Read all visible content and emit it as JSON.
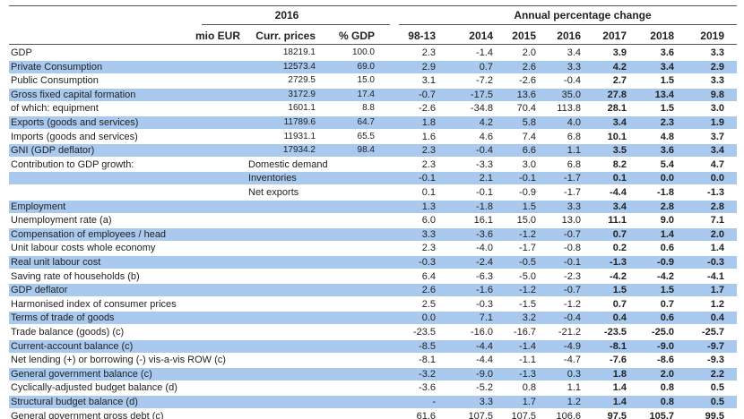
{
  "header": {
    "year": "2016",
    "change": "Annual percentage change",
    "columns": [
      "mio EUR",
      "Curr. prices",
      "% GDP",
      "98-13",
      "2014",
      "2015",
      "2016",
      "2017",
      "2018",
      "2019"
    ]
  },
  "rows": [
    {
      "label": "GDP",
      "shaded": false,
      "cells": [
        "18219.1",
        "100.0",
        "2.3",
        "-1.4",
        "2.0",
        "3.4",
        "3.9",
        "3.6",
        "3.3"
      ]
    },
    {
      "label": "Private Consumption",
      "shaded": true,
      "cells": [
        "12573.4",
        "69.0",
        "2.9",
        "0.7",
        "2.6",
        "3.3",
        "4.2",
        "3.4",
        "2.9"
      ]
    },
    {
      "label": "Public Consumption",
      "shaded": false,
      "cells": [
        "2729.5",
        "15.0",
        "3.1",
        "-7.2",
        "-2.6",
        "-0.4",
        "2.7",
        "1.5",
        "3.3"
      ]
    },
    {
      "label": "Gross fixed capital formation",
      "shaded": true,
      "cells": [
        "3172.9",
        "17.4",
        "-0.7",
        "-17.5",
        "13.6",
        "35.0",
        "27.8",
        "13.4",
        "9.8"
      ]
    },
    {
      "label": "of which: equipment",
      "shaded": false,
      "cells": [
        "1601.1",
        "8.8",
        "-2.6",
        "-34.8",
        "70.4",
        "113.8",
        "28.1",
        "1.5",
        "3.0"
      ]
    },
    {
      "label": "Exports (goods and services)",
      "shaded": true,
      "cells": [
        "11789.6",
        "64.7",
        "1.8",
        "4.2",
        "5.8",
        "4.0",
        "3.4",
        "2.3",
        "1.9"
      ]
    },
    {
      "label": "Imports (goods and services)",
      "shaded": false,
      "cells": [
        "11931.1",
        "65.5",
        "1.6",
        "4.6",
        "7.4",
        "6.8",
        "10.1",
        "4.8",
        "3.7"
      ]
    },
    {
      "label": "GNI (GDP deflator)",
      "shaded": true,
      "cells": [
        "17934.2",
        "98.4",
        "2.3",
        "-0.4",
        "6.6",
        "1.1",
        "3.5",
        "3.6",
        "3.4"
      ]
    },
    {
      "label": "Contribution to GDP growth:",
      "sublabel": "Domestic demand",
      "shaded": false,
      "cells": [
        null,
        null,
        "2.3",
        "-3.3",
        "3.0",
        "6.8",
        "8.2",
        "5.4",
        "4.7"
      ]
    },
    {
      "sublabel": "Inventories",
      "shaded": true,
      "cells": [
        null,
        null,
        "-0.1",
        "2.1",
        "-0.1",
        "-1.7",
        "0.1",
        "0.0",
        "0.0"
      ]
    },
    {
      "sublabel": "Net exports",
      "shaded": false,
      "cells": [
        null,
        null,
        "0.1",
        "-0.1",
        "-0.9",
        "-1.7",
        "-4.4",
        "-1.8",
        "-1.3"
      ]
    },
    {
      "label": "Employment",
      "shaded": true,
      "cells": [
        null,
        null,
        "1.3",
        "-1.8",
        "1.5",
        "3.3",
        "3.4",
        "2.8",
        "2.8"
      ]
    },
    {
      "label": "Unemployment rate (a)",
      "shaded": false,
      "cells": [
        null,
        null,
        "6.0",
        "16.1",
        "15.0",
        "13.0",
        "11.1",
        "9.0",
        "7.1"
      ]
    },
    {
      "label": "Compensation of employees / head",
      "shaded": true,
      "cells": [
        null,
        null,
        "3.3",
        "-3.6",
        "-1.2",
        "-0.7",
        "0.7",
        "1.4",
        "2.0"
      ]
    },
    {
      "label": "Unit labour costs whole economy",
      "shaded": false,
      "cells": [
        null,
        null,
        "2.3",
        "-4.0",
        "-1.7",
        "-0.8",
        "0.2",
        "0.6",
        "1.4"
      ]
    },
    {
      "label": "Real unit labour cost",
      "shaded": true,
      "cells": [
        null,
        null,
        "-0.3",
        "-2.4",
        "-0.5",
        "-0.1",
        "-1.3",
        "-0.9",
        "-0.3"
      ]
    },
    {
      "label": "Saving rate of households (b)",
      "shaded": false,
      "cells": [
        null,
        null,
        "6.4",
        "-6.3",
        "-5.0",
        "-2.3",
        "-4.2",
        "-4.2",
        "-4.1"
      ]
    },
    {
      "label": "GDP deflator",
      "shaded": true,
      "cells": [
        null,
        null,
        "2.6",
        "-1.6",
        "-1.2",
        "-0.7",
        "1.5",
        "1.5",
        "1.7"
      ]
    },
    {
      "label": "Harmonised index of consumer prices",
      "shaded": false,
      "cells": [
        null,
        null,
        "2.5",
        "-0.3",
        "-1.5",
        "-1.2",
        "0.7",
        "0.7",
        "1.2"
      ]
    },
    {
      "label": "Terms of trade of goods",
      "shaded": true,
      "cells": [
        null,
        null,
        "0.0",
        "7.1",
        "3.2",
        "-0.4",
        "0.4",
        "0.6",
        "0.4"
      ]
    },
    {
      "label": "Trade balance (goods) (c)",
      "shaded": false,
      "cells": [
        null,
        null,
        "-23.5",
        "-16.0",
        "-16.7",
        "-21.2",
        "-23.5",
        "-25.0",
        "-25.7"
      ]
    },
    {
      "label": "Current-account balance (c)",
      "shaded": true,
      "cells": [
        null,
        null,
        "-8.5",
        "-4.4",
        "-1.4",
        "-4.9",
        "-8.1",
        "-9.0",
        "-9.7"
      ]
    },
    {
      "label": "Net lending (+) or borrowing (-) vis-a-vis ROW (c)",
      "shaded": false,
      "cells": [
        null,
        null,
        "-8.1",
        "-4.4",
        "-1.1",
        "-4.7",
        "-7.6",
        "-8.6",
        "-9.3"
      ]
    },
    {
      "label": "General government balance (c)",
      "shaded": true,
      "cells": [
        null,
        null,
        "-3.2",
        "-9.0",
        "-1.3",
        "0.3",
        "1.8",
        "2.0",
        "2.2"
      ]
    },
    {
      "label": "Cyclically-adjusted budget balance (d)",
      "shaded": false,
      "cells": [
        null,
        null,
        "-3.6",
        "-5.2",
        "0.8",
        "1.1",
        "1.4",
        "0.8",
        "0.5"
      ]
    },
    {
      "label": "Structural budget balance (d)",
      "shaded": true,
      "cells": [
        null,
        null,
        "-",
        "3.3",
        "1.7",
        "1.2",
        "1.4",
        "0.8",
        "0.5"
      ]
    },
    {
      "label": "General government gross debt (c)",
      "shaded": false,
      "cells": [
        null,
        null,
        "61.6",
        "107.5",
        "107.5",
        "106.6",
        "97.5",
        "105.7",
        "99.5"
      ]
    }
  ]
}
